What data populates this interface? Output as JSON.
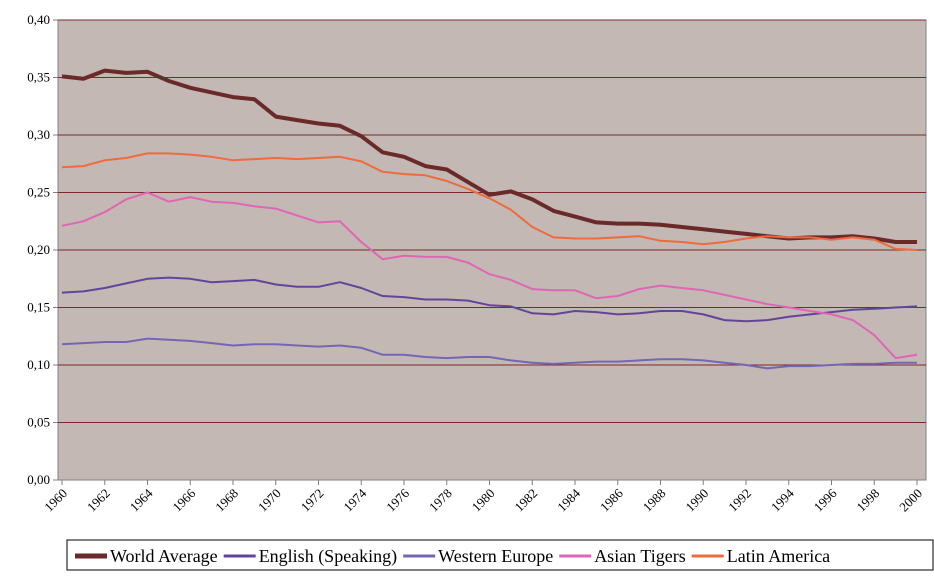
{
  "chart_data": {
    "type": "line",
    "x": [
      1960,
      1961,
      1962,
      1963,
      1964,
      1965,
      1966,
      1967,
      1968,
      1969,
      1970,
      1971,
      1972,
      1973,
      1974,
      1975,
      1976,
      1977,
      1978,
      1979,
      1980,
      1981,
      1982,
      1983,
      1984,
      1985,
      1986,
      1987,
      1988,
      1989,
      1990,
      1991,
      1992,
      1993,
      1994,
      1995,
      1996,
      1997,
      1998,
      1999,
      2000
    ],
    "xlim": [
      1960,
      2000
    ],
    "xticks": [
      1960,
      1962,
      1964,
      1966,
      1968,
      1970,
      1972,
      1974,
      1976,
      1978,
      1980,
      1982,
      1984,
      1986,
      1988,
      1990,
      1992,
      1994,
      1996,
      1998,
      2000
    ],
    "ylim": [
      0,
      0.4
    ],
    "yticks": [
      {
        "value": 0,
        "label": "0,00"
      },
      {
        "value": 0.05,
        "label": "0,05"
      },
      {
        "value": 0.1,
        "label": "0,10"
      },
      {
        "value": 0.15,
        "label": "0,15"
      },
      {
        "value": 0.2,
        "label": "0,20"
      },
      {
        "value": 0.25,
        "label": "0,25"
      },
      {
        "value": 0.3,
        "label": "0,30"
      },
      {
        "value": 0.35,
        "label": "0,35"
      },
      {
        "value": 0.4,
        "label": "0,40"
      }
    ],
    "grid": true,
    "legend": "bottom",
    "series": [
      {
        "name": "World Average",
        "color": "#6b2a2a",
        "width": 4,
        "values": [
          0.351,
          0.349,
          0.356,
          0.354,
          0.355,
          0.347,
          0.341,
          0.337,
          0.333,
          0.331,
          0.316,
          0.313,
          0.31,
          0.308,
          0.299,
          0.285,
          0.281,
          0.273,
          0.27,
          0.259,
          0.248,
          0.251,
          0.244,
          0.234,
          0.229,
          0.224,
          0.223,
          0.223,
          0.222,
          0.22,
          0.218,
          0.216,
          0.214,
          0.212,
          0.21,
          0.211,
          0.211,
          0.212,
          0.21,
          0.207,
          0.207
        ]
      },
      {
        "name": "English (Speaking)",
        "color": "#64449a",
        "width": 2,
        "values": [
          0.163,
          0.164,
          0.167,
          0.171,
          0.175,
          0.176,
          0.175,
          0.172,
          0.173,
          0.174,
          0.17,
          0.168,
          0.168,
          0.172,
          0.167,
          0.16,
          0.159,
          0.157,
          0.157,
          0.156,
          0.152,
          0.151,
          0.145,
          0.144,
          0.147,
          0.146,
          0.144,
          0.145,
          0.147,
          0.147,
          0.144,
          0.139,
          0.138,
          0.139,
          0.142,
          0.144,
          0.146,
          0.148,
          0.149,
          0.15,
          0.151
        ]
      },
      {
        "name": "Western Europe",
        "color": "#7466b4",
        "width": 2,
        "values": [
          0.118,
          0.119,
          0.12,
          0.12,
          0.123,
          0.122,
          0.121,
          0.119,
          0.117,
          0.118,
          0.118,
          0.117,
          0.116,
          0.117,
          0.115,
          0.109,
          0.109,
          0.107,
          0.106,
          0.107,
          0.107,
          0.104,
          0.102,
          0.101,
          0.102,
          0.103,
          0.103,
          0.104,
          0.105,
          0.105,
          0.104,
          0.102,
          0.1,
          0.097,
          0.099,
          0.099,
          0.1,
          0.101,
          0.101,
          0.102,
          0.102
        ]
      },
      {
        "name": "Asian Tigers",
        "color": "#e066b4",
        "width": 2,
        "values": [
          0.221,
          0.225,
          0.233,
          0.244,
          0.25,
          0.242,
          0.246,
          0.242,
          0.241,
          0.238,
          0.236,
          0.23,
          0.224,
          0.225,
          0.207,
          0.192,
          0.195,
          0.194,
          0.194,
          0.189,
          0.179,
          0.174,
          0.166,
          0.165,
          0.165,
          0.158,
          0.16,
          0.166,
          0.169,
          0.167,
          0.165,
          0.161,
          0.157,
          0.153,
          0.15,
          0.147,
          0.144,
          0.139,
          0.126,
          0.106,
          0.109
        ]
      },
      {
        "name": "Latin America",
        "color": "#ef6a3d",
        "width": 2,
        "values": [
          0.272,
          0.273,
          0.278,
          0.28,
          0.284,
          0.284,
          0.283,
          0.281,
          0.278,
          0.279,
          0.28,
          0.279,
          0.28,
          0.281,
          0.277,
          0.268,
          0.266,
          0.265,
          0.26,
          0.253,
          0.245,
          0.235,
          0.22,
          0.211,
          0.21,
          0.21,
          0.211,
          0.212,
          0.208,
          0.207,
          0.205,
          0.207,
          0.21,
          0.212,
          0.211,
          0.211,
          0.209,
          0.211,
          0.209,
          0.201,
          0.2
        ]
      }
    ]
  }
}
